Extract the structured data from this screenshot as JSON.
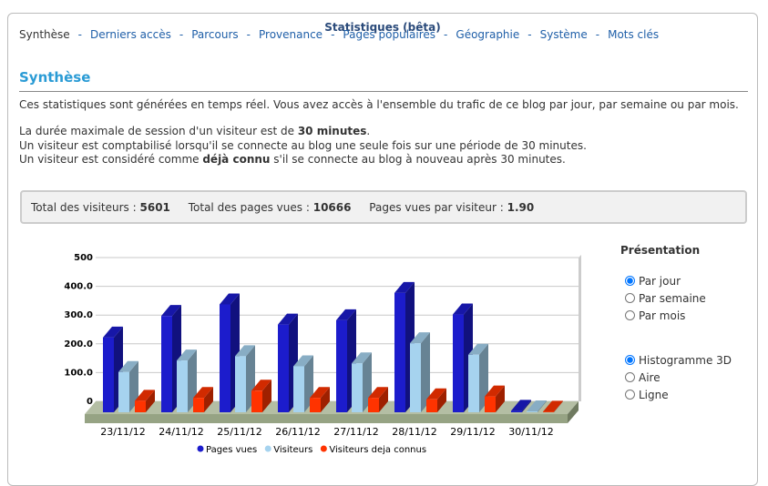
{
  "header": {
    "title": "Statistiques (bêta)"
  },
  "nav": {
    "separator": "-",
    "items": [
      "Synthèse",
      "Derniers accès",
      "Parcours",
      "Provenance",
      "Pages populaires",
      "Géographie",
      "Système",
      "Mots clés"
    ]
  },
  "section": {
    "title": "Synthèse"
  },
  "intro": "Ces statistiques sont générées en temps réel. Vous avez accès à l'ensemble du trafic de ce blog par jour, par semaine ou par mois.",
  "notes": [
    [
      "La durée maximale de session d'un visiteur est de ",
      "30 minutes",
      "."
    ],
    [
      "Un visiteur est comptabilisé lorsqu'il se connecte au blog une seule fois sur une période de 30 minutes."
    ],
    [
      "Un visiteur est considéré comme ",
      "déjà connu",
      " s'il se connecte au blog à nouveau après 30 minutes."
    ]
  ],
  "stats": [
    {
      "label": "Total des visiteurs :",
      "value": "5601"
    },
    {
      "label": "Total des pages vues :",
      "value": "10666"
    },
    {
      "label": "Pages vues par visiteur :",
      "value": "1.90"
    }
  ],
  "options": {
    "title": "Présentation",
    "period": [
      "Par jour",
      "Par semaine",
      "Par mois"
    ],
    "period_selected": 0,
    "display": [
      "Histogramme 3D",
      "Aire",
      "Ligne"
    ],
    "display_selected": 0
  },
  "chart_data": {
    "type": "bar3d",
    "categories": [
      "23/11/12",
      "24/11/12",
      "25/11/12",
      "26/11/12",
      "27/11/12",
      "28/11/12",
      "29/11/12",
      "30/11/12"
    ],
    "series": [
      {
        "name": "Pages vues",
        "color": "#1c1ccc",
        "values": [
          260,
          335,
          375,
          305,
          320,
          415,
          340,
          5
        ]
      },
      {
        "name": "Visiteurs",
        "color": "#a6d3ef",
        "values": [
          140,
          180,
          195,
          160,
          170,
          240,
          200,
          3
        ]
      },
      {
        "name": "Visiteurs deja connus",
        "color": "#ff3300",
        "values": [
          40,
          50,
          75,
          50,
          50,
          45,
          55,
          2
        ]
      }
    ],
    "ylim": [
      0,
      500
    ],
    "yticks": [
      0,
      {
        "value": 100,
        "label": "100.0"
      },
      {
        "value": 200,
        "label": "200.0"
      },
      {
        "value": 300,
        "label": "300.0"
      },
      {
        "value": 400,
        "label": "400.0"
      },
      500
    ],
    "grid": true,
    "legend": "bottom"
  }
}
